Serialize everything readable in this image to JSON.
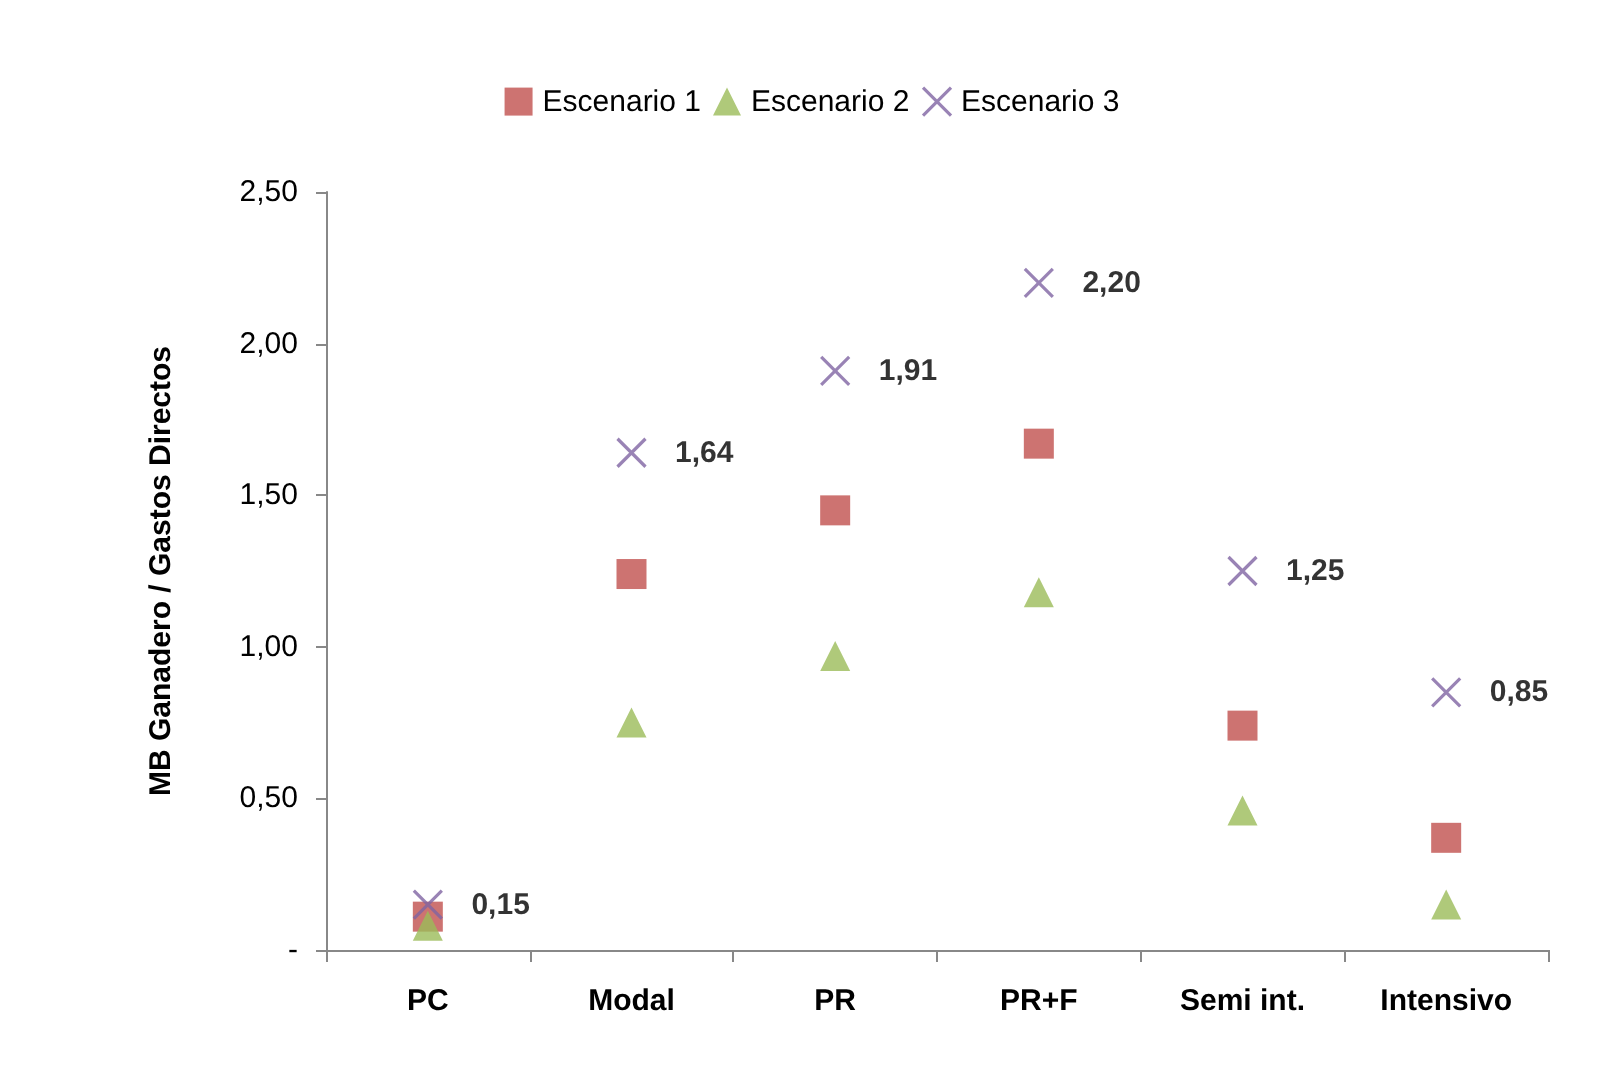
{
  "chart_data": {
    "type": "scatter",
    "ylabel": "MB Ganadero / Gastos Directos",
    "categories": [
      "PC",
      "Modal",
      "PR",
      "PR+F",
      "Semi int.",
      "Intensivo"
    ],
    "series": [
      {
        "name": "Escenario 1",
        "color": "#c0504d",
        "marker": "square",
        "values": [
          0.11,
          1.24,
          1.45,
          1.67,
          0.74,
          0.37
        ]
      },
      {
        "name": "Escenario 2",
        "color": "#9bbb59",
        "marker": "triangle",
        "values": [
          0.08,
          0.75,
          0.97,
          1.18,
          0.46,
          0.15
        ]
      },
      {
        "name": "Escenario 3",
        "color": "#8064a2",
        "marker": "cross",
        "values": [
          0.15,
          1.64,
          1.91,
          2.2,
          1.25,
          0.85
        ],
        "value_labels": [
          "0,15",
          "1,64",
          "1,91",
          "2,20",
          "1,25",
          "0,85"
        ]
      }
    ],
    "ylim": [
      0,
      2.5
    ],
    "yticks": [
      {
        "value": 0,
        "label": "-"
      },
      {
        "value": 0.5,
        "label": "0,50"
      },
      {
        "value": 1,
        "label": "1,00"
      },
      {
        "value": 1.5,
        "label": "1,50"
      },
      {
        "value": 2,
        "label": "2,00"
      },
      {
        "value": 2.5,
        "label": "2,50"
      }
    ],
    "grid": false,
    "legend": "top"
  }
}
